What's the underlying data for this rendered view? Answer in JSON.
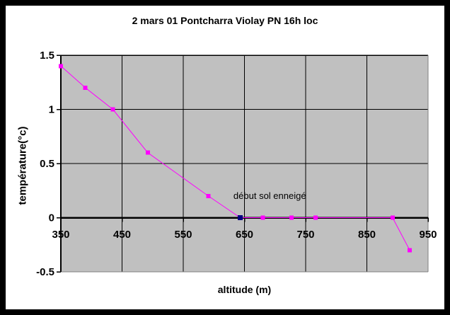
{
  "chart_data": {
    "type": "line",
    "title": "2 mars 01 Pontcharra Violay PN 16h loc",
    "xlabel": "altitude (m)",
    "ylabel": "température(°c)",
    "x": [
      350,
      390,
      435,
      492,
      591,
      643,
      680,
      727,
      766,
      892,
      920
    ],
    "y": [
      1.4,
      1.2,
      1.0,
      0.6,
      0.2,
      0,
      0,
      0,
      0,
      0,
      -0.3
    ],
    "point_colors": [
      "#FF00FF",
      "#FF00FF",
      "#FF00FF",
      "#FF00FF",
      "#FF00FF",
      "#000080",
      "#FF00FF",
      "#FF00FF",
      "#FF00FF",
      "#FF00FF",
      "#FF00FF"
    ],
    "line_color": "#FF00FF",
    "snow_marker_color": "#000080",
    "xlim": [
      350,
      950
    ],
    "ylim": [
      -0.5,
      1.5
    ],
    "xticks": [
      350,
      450,
      550,
      650,
      750,
      850,
      950
    ],
    "yticks": [
      -0.5,
      0,
      0.5,
      1,
      1.5
    ],
    "ytick_labels": [
      "-0.5",
      "0",
      "0.5",
      "1",
      "1.5"
    ],
    "plot_bg": "#C0C0C0",
    "grid": true,
    "grid_color": "#000000",
    "axis_color": "#000000",
    "edge_color": "#808080",
    "legend": false,
    "annotation": {
      "text": "début sol enneigé",
      "x": 632,
      "y": 0.2
    }
  }
}
